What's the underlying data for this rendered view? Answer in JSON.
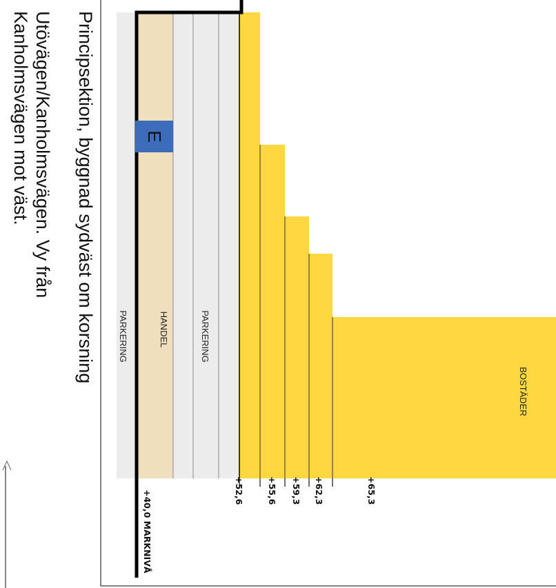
{
  "caption": {
    "lines": [
      "Principsektion, byggnad sydväst om korsning",
      "Utövägen/Kanholmsvägen. Vy från",
      "Kanholmsvägen mot väst."
    ]
  },
  "zones": {
    "parking_lower": "PARKERING",
    "retail": "HANDEL",
    "parking_upper": "PARKERING",
    "housing": "BOSTÄDER"
  },
  "entrance_badge": "E",
  "levels": {
    "ground": "+40,0 MARKNIVÅ",
    "l1": "+52,6",
    "l2": "+55,6",
    "l3": "+59,3",
    "l4": "+62,3",
    "l5": "+65,3"
  },
  "colors": {
    "parking": "#ececec",
    "retail": "#efdfbd",
    "housing": "#ffd740",
    "entrance": "#3d6dba",
    "ground_line": "#000000"
  }
}
